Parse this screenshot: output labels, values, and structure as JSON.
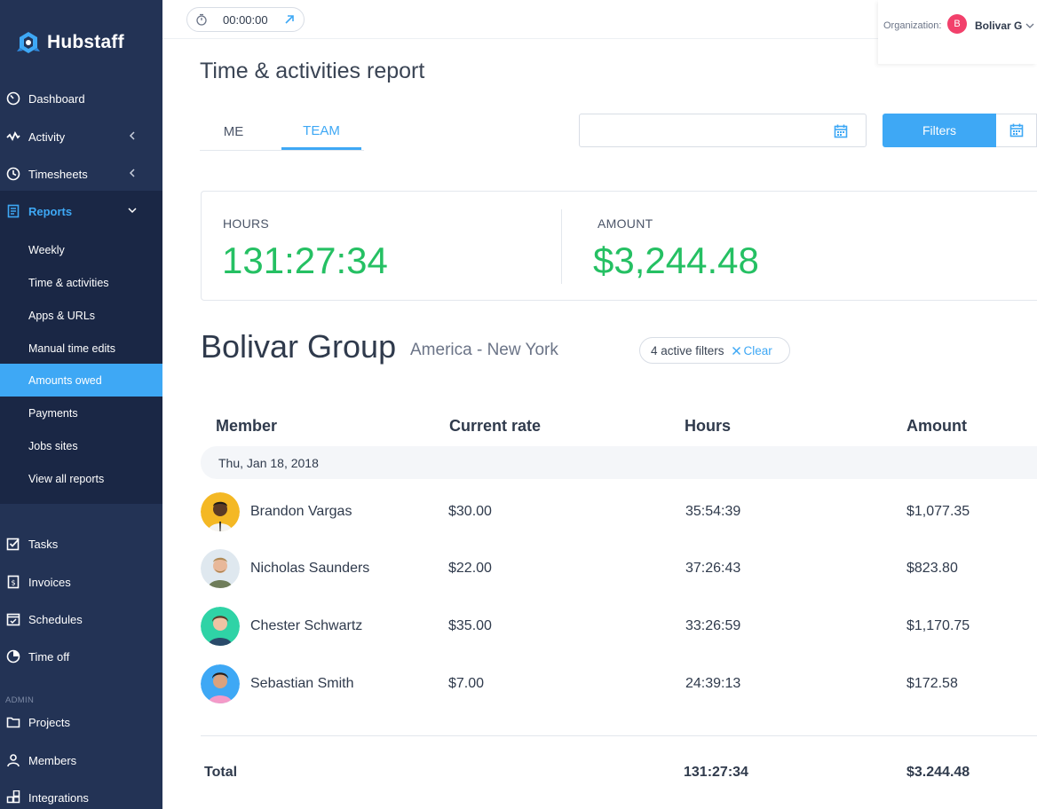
{
  "sidebar": {
    "logo": "Hubstaff",
    "nav": [
      {
        "label": "Dashboard"
      },
      {
        "label": "Activity"
      },
      {
        "label": "Timesheets"
      }
    ],
    "reports": {
      "label": "Reports",
      "items": [
        {
          "label": "Weekly"
        },
        {
          "label": "Time & activities"
        },
        {
          "label": "Apps & URLs"
        },
        {
          "label": "Manual time edits"
        },
        {
          "label": "Amounts owed"
        },
        {
          "label": "Payments"
        },
        {
          "label": "Jobs sites"
        },
        {
          "label": "View all reports"
        }
      ]
    },
    "lower": [
      {
        "label": "Tasks"
      },
      {
        "label": "Invoices"
      },
      {
        "label": "Schedules"
      },
      {
        "label": "Time off"
      }
    ],
    "admin_label": "ADMIN",
    "admin": [
      {
        "label": "Projects"
      },
      {
        "label": "Members"
      },
      {
        "label": "Integrations"
      }
    ]
  },
  "topbar": {
    "timer": "00:00:00",
    "org_label": "Organization:",
    "org_initial": "B",
    "org_name": "Bolivar G"
  },
  "page": {
    "title": "Time & activities report",
    "tabs": [
      {
        "label": "ME"
      },
      {
        "label": "TEAM"
      }
    ],
    "active_tab": "TEAM",
    "filters_label": "Filters"
  },
  "summary": {
    "hours_label": "HOURS",
    "hours_value": "131:27:34",
    "amount_label": "AMOUNT",
    "amount_value": "$3,244.48"
  },
  "group": {
    "name": "Bolivar Group",
    "zone": "America - New York",
    "filters_count": "4 active filters",
    "clear_label": "Clear"
  },
  "table": {
    "headers": {
      "member": "Member",
      "rate": "Current rate",
      "hours": "Hours",
      "amount": "Amount"
    },
    "date": "Thu, Jan 18, 2018",
    "rows": [
      {
        "name": "Brandon Vargas",
        "rate": "$30.00",
        "hours": "35:54:39",
        "amount": "$1,077.35"
      },
      {
        "name": "Nicholas Saunders",
        "rate": "$22.00",
        "hours": "37:26:43",
        "amount": "$823.80"
      },
      {
        "name": "Chester Schwartz",
        "rate": "$35.00",
        "hours": "33:26:59",
        "amount": "$1,170.75"
      },
      {
        "name": "Sebastian Smith",
        "rate": "$7.00",
        "hours": "24:39:13",
        "amount": "$172.58"
      }
    ],
    "total_label": "Total",
    "total_hours": "131:27:34",
    "total_amount": "$3.244.48"
  },
  "colors": {
    "sidebar": "#233355",
    "sidebar_dark": "#1a2745",
    "accent": "#3ea8f5",
    "green": "#25c063",
    "avatar_badge": "#f2406b"
  }
}
